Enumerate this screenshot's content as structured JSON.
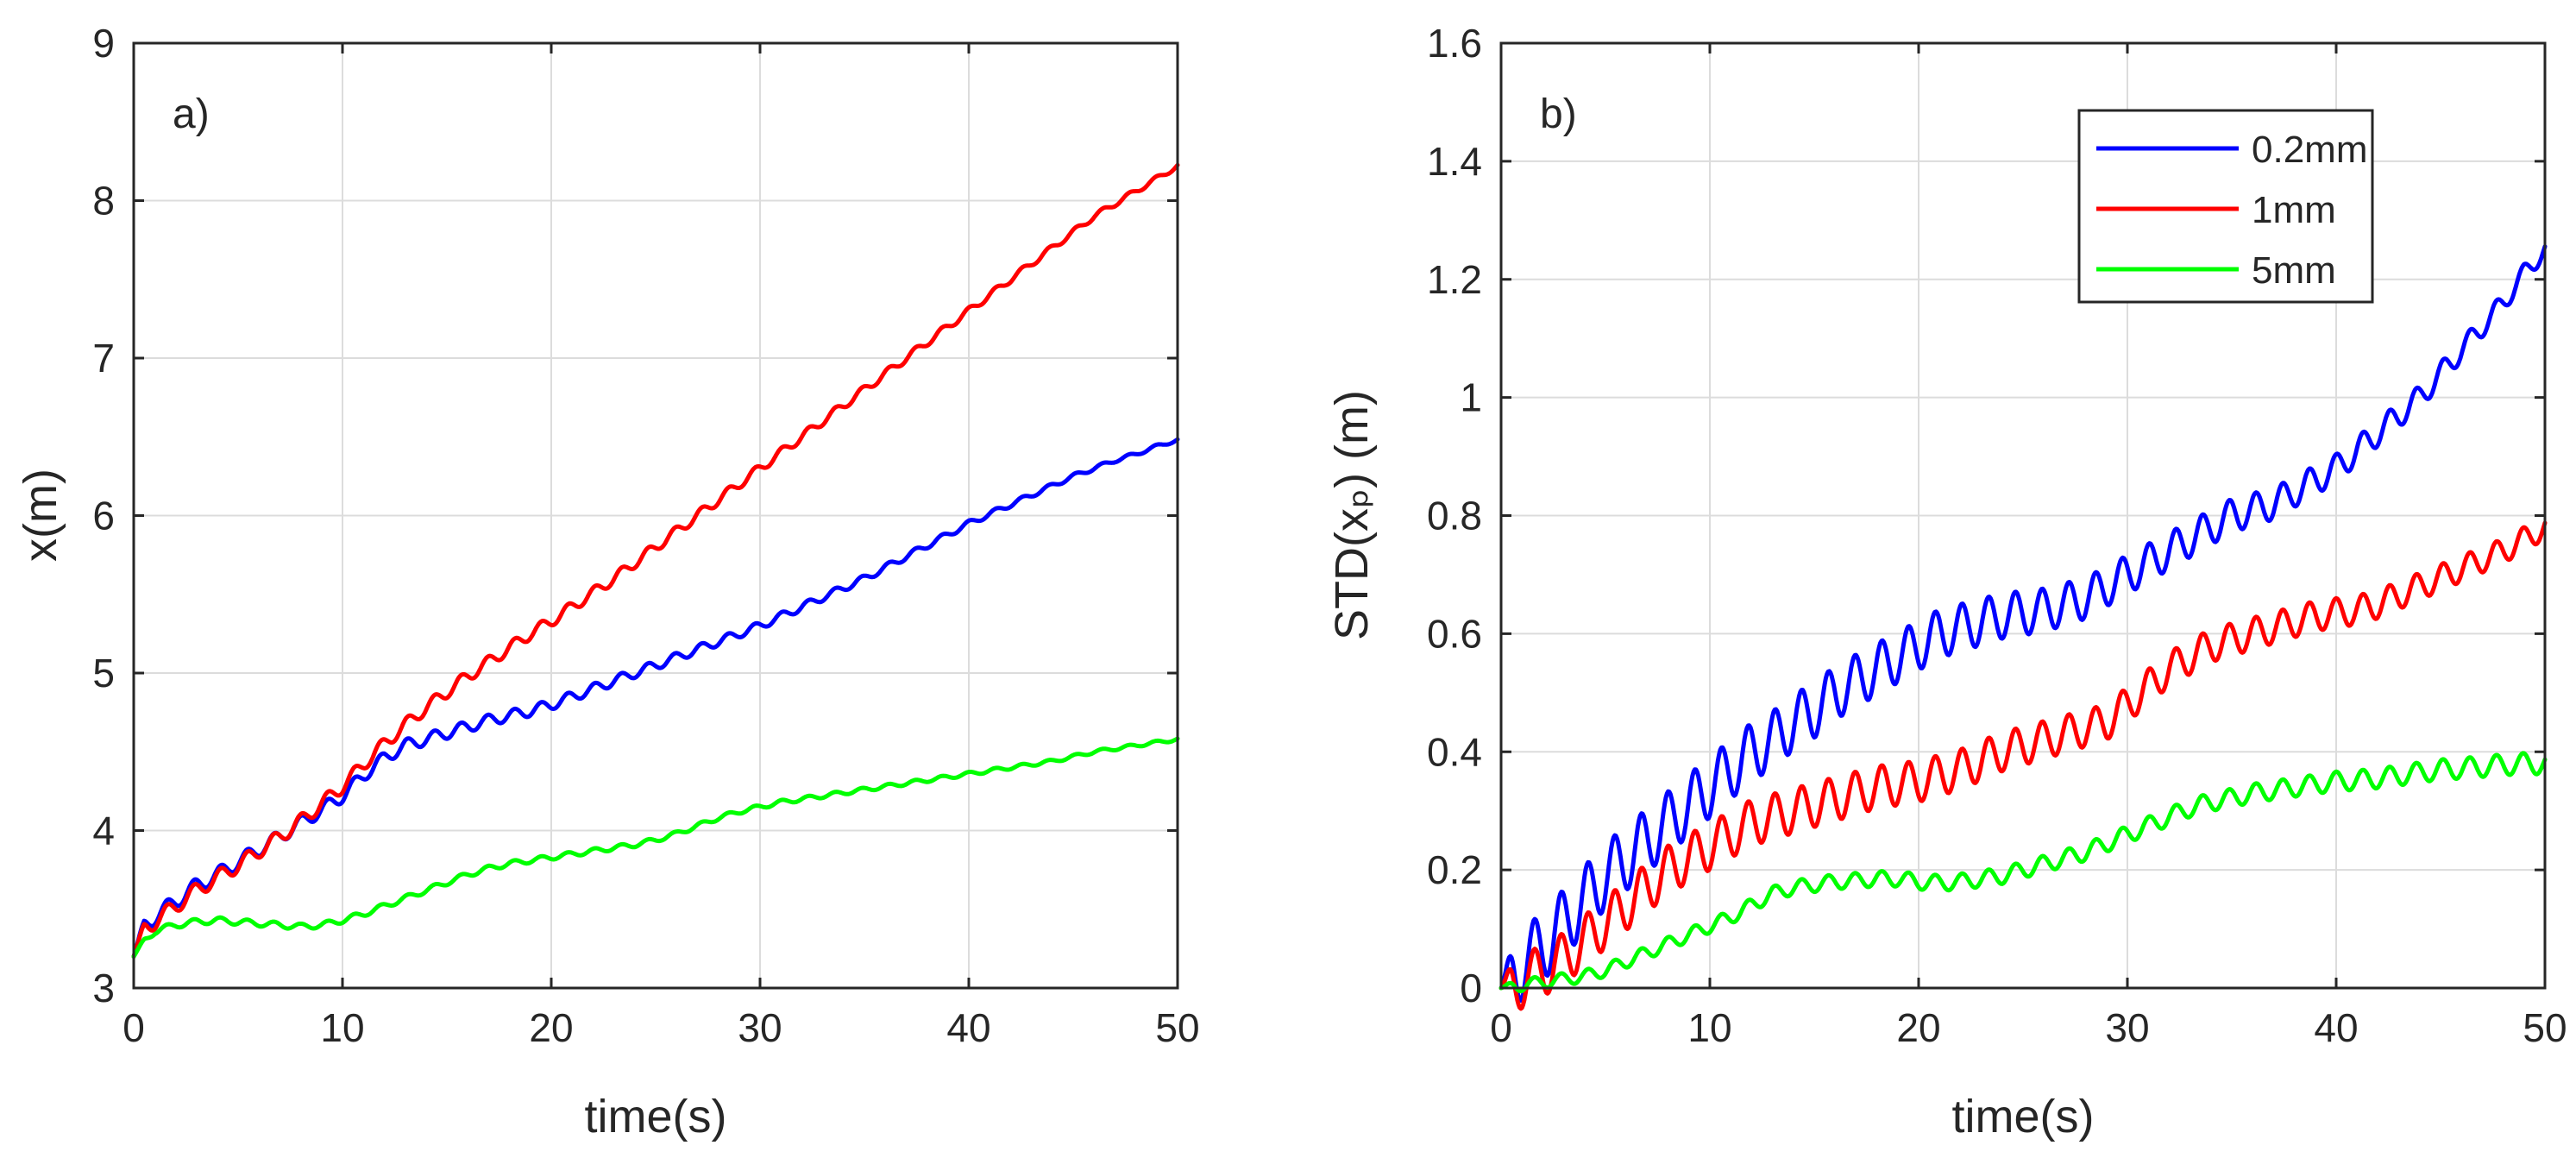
{
  "chart_data": [
    {
      "type": "line",
      "panel_label": "a)",
      "title": "",
      "xlabel": "time(s)",
      "ylabel": "x(m)",
      "xlim": [
        0,
        50
      ],
      "ylim": [
        3,
        9
      ],
      "xticks": [
        0,
        10,
        20,
        30,
        40,
        50
      ],
      "yticks": [
        3,
        4,
        5,
        6,
        7,
        8,
        9
      ],
      "xtick_labels": [
        "0",
        "10",
        "20",
        "30",
        "40",
        "50"
      ],
      "ytick_labels": [
        "3",
        "4",
        "5",
        "6",
        "7",
        "8",
        "9"
      ],
      "grid": true,
      "legend": null,
      "series": [
        {
          "name": "0.2mm",
          "color": "#0000ff",
          "x": [
            0,
            0.5,
            1,
            2,
            3,
            4,
            5,
            6,
            7,
            8,
            9,
            10,
            11,
            12,
            13,
            14,
            15,
            16,
            17,
            18,
            19,
            20,
            21,
            22,
            23,
            24,
            25,
            26,
            27,
            28,
            29,
            30,
            31,
            32,
            33,
            34,
            35,
            36,
            37,
            38,
            39,
            40,
            41,
            42,
            43,
            44,
            45,
            46,
            47,
            48,
            49,
            50
          ],
          "y": [
            3.2,
            3.4,
            3.45,
            3.55,
            3.65,
            3.72,
            3.8,
            3.88,
            3.96,
            4.05,
            4.13,
            4.22,
            4.35,
            4.46,
            4.54,
            4.58,
            4.62,
            4.66,
            4.7,
            4.73,
            4.76,
            4.8,
            4.85,
            4.9,
            4.95,
            5.0,
            5.05,
            5.1,
            5.15,
            5.2,
            5.25,
            5.3,
            5.36,
            5.42,
            5.48,
            5.54,
            5.6,
            5.67,
            5.74,
            5.81,
            5.88,
            5.95,
            6.01,
            6.07,
            6.13,
            6.19,
            6.25,
            6.3,
            6.35,
            6.39,
            6.44,
            6.48
          ],
          "oscillation_amplitude": [
            0.05,
            0.01
          ]
        },
        {
          "name": "1mm",
          "color": "#ff0000",
          "x": [
            0,
            0.5,
            1,
            2,
            3,
            4,
            5,
            6,
            7,
            8,
            9,
            10,
            11,
            12,
            13,
            14,
            15,
            16,
            17,
            18,
            19,
            20,
            21,
            22,
            23,
            24,
            25,
            26,
            27,
            28,
            29,
            30,
            31,
            32,
            33,
            34,
            35,
            36,
            37,
            38,
            39,
            40,
            41,
            42,
            43,
            44,
            45,
            46,
            47,
            48,
            49,
            50
          ],
          "y": [
            3.2,
            3.38,
            3.42,
            3.52,
            3.62,
            3.7,
            3.78,
            3.87,
            3.96,
            4.06,
            4.17,
            4.28,
            4.42,
            4.55,
            4.67,
            4.78,
            4.88,
            4.98,
            5.07,
            5.16,
            5.25,
            5.33,
            5.42,
            5.51,
            5.6,
            5.7,
            5.8,
            5.9,
            6.0,
            6.1,
            6.2,
            6.3,
            6.4,
            6.5,
            6.6,
            6.7,
            6.8,
            6.9,
            7.0,
            7.1,
            7.2,
            7.3,
            7.4,
            7.5,
            7.6,
            7.7,
            7.8,
            7.9,
            7.98,
            8.06,
            8.14,
            8.22
          ],
          "oscillation_amplitude": [
            0.05,
            0.015
          ]
        },
        {
          "name": "5mm",
          "color": "#00ff00",
          "x": [
            0,
            0.5,
            1,
            2,
            3,
            4,
            5,
            6,
            7,
            8,
            9,
            10,
            11,
            12,
            13,
            14,
            15,
            16,
            17,
            18,
            19,
            20,
            21,
            22,
            23,
            24,
            25,
            26,
            27,
            28,
            29,
            30,
            31,
            32,
            33,
            34,
            35,
            36,
            37,
            38,
            39,
            40,
            41,
            42,
            43,
            44,
            45,
            46,
            47,
            48,
            49,
            50
          ],
          "y": [
            3.2,
            3.3,
            3.36,
            3.4,
            3.42,
            3.43,
            3.42,
            3.41,
            3.4,
            3.39,
            3.4,
            3.43,
            3.47,
            3.52,
            3.57,
            3.62,
            3.67,
            3.72,
            3.76,
            3.79,
            3.81,
            3.83,
            3.85,
            3.87,
            3.89,
            3.91,
            3.94,
            3.98,
            4.03,
            4.08,
            4.12,
            4.15,
            4.18,
            4.2,
            4.22,
            4.24,
            4.26,
            4.28,
            4.3,
            4.32,
            4.34,
            4.36,
            4.38,
            4.4,
            4.42,
            4.44,
            4.47,
            4.5,
            4.52,
            4.54,
            4.56,
            4.58
          ],
          "oscillation_amplitude": [
            0.02,
            0.01
          ]
        }
      ]
    },
    {
      "type": "line",
      "panel_label": "b)",
      "title": "",
      "xlabel": "time(s)",
      "ylabel": "STD(xₚ) (m)",
      "xlim": [
        0,
        50
      ],
      "ylim": [
        0,
        1.6
      ],
      "xticks": [
        0,
        10,
        20,
        30,
        40,
        50
      ],
      "yticks": [
        0,
        0.2,
        0.4,
        0.6,
        0.8,
        1,
        1.2,
        1.4,
        1.6
      ],
      "xtick_labels": [
        "0",
        "10",
        "20",
        "30",
        "40",
        "50"
      ],
      "ytick_labels": [
        "0",
        "0.2",
        "0.4",
        "0.6",
        "0.8",
        "1",
        "1.2",
        "1.4",
        "1.6"
      ],
      "grid": true,
      "legend": {
        "placement": "top-right",
        "entries": [
          "0.2mm",
          "1mm",
          "5mm"
        ]
      },
      "series": [
        {
          "name": "0.2mm",
          "color": "#0000ff",
          "x": [
            0,
            1,
            2,
            3,
            4,
            5,
            6,
            7,
            8,
            9,
            10,
            11,
            12,
            13,
            14,
            15,
            16,
            17,
            18,
            19,
            20,
            21,
            22,
            23,
            24,
            25,
            26,
            27,
            28,
            29,
            30,
            31,
            32,
            33,
            34,
            35,
            36,
            37,
            38,
            39,
            40,
            41,
            42,
            43,
            44,
            45,
            46,
            47,
            48,
            49,
            50
          ],
          "y": [
            0,
            0.04,
            0.07,
            0.11,
            0.15,
            0.19,
            0.22,
            0.25,
            0.28,
            0.31,
            0.34,
            0.37,
            0.4,
            0.42,
            0.45,
            0.47,
            0.5,
            0.52,
            0.54,
            0.56,
            0.58,
            0.6,
            0.61,
            0.62,
            0.63,
            0.635,
            0.64,
            0.65,
            0.66,
            0.68,
            0.7,
            0.72,
            0.74,
            0.76,
            0.78,
            0.8,
            0.81,
            0.82,
            0.84,
            0.86,
            0.88,
            0.91,
            0.94,
            0.97,
            1.0,
            1.04,
            1.08,
            1.12,
            1.16,
            1.21,
            1.25
          ],
          "oscillation_amplitude": [
            0.06,
            0.015
          ]
        },
        {
          "name": "1mm",
          "color": "#ff0000",
          "x": [
            0,
            1,
            2,
            3,
            4,
            5,
            6,
            7,
            8,
            9,
            10,
            11,
            12,
            13,
            14,
            15,
            16,
            17,
            18,
            19,
            20,
            21,
            22,
            23,
            24,
            25,
            26,
            27,
            28,
            29,
            30,
            31,
            32,
            33,
            34,
            35,
            36,
            37,
            38,
            39,
            40,
            41,
            42,
            43,
            44,
            45,
            46,
            47,
            48,
            49,
            50
          ],
          "y": [
            0,
            0.01,
            0.03,
            0.05,
            0.08,
            0.11,
            0.14,
            0.17,
            0.2,
            0.22,
            0.24,
            0.26,
            0.28,
            0.29,
            0.3,
            0.31,
            0.32,
            0.33,
            0.34,
            0.345,
            0.35,
            0.36,
            0.37,
            0.385,
            0.4,
            0.41,
            0.42,
            0.43,
            0.44,
            0.45,
            0.48,
            0.51,
            0.54,
            0.56,
            0.58,
            0.59,
            0.6,
            0.61,
            0.62,
            0.63,
            0.635,
            0.64,
            0.65,
            0.665,
            0.68,
            0.695,
            0.71,
            0.725,
            0.74,
            0.76,
            0.78
          ],
          "oscillation_amplitude": [
            0.045,
            0.02
          ]
        },
        {
          "name": "5mm",
          "color": "#00ff00",
          "x": [
            0,
            1,
            2,
            3,
            4,
            5,
            6,
            7,
            8,
            9,
            10,
            11,
            12,
            13,
            14,
            15,
            16,
            17,
            18,
            19,
            20,
            21,
            22,
            23,
            24,
            25,
            26,
            27,
            28,
            29,
            30,
            31,
            32,
            33,
            34,
            35,
            36,
            37,
            38,
            39,
            40,
            41,
            42,
            43,
            44,
            45,
            46,
            47,
            48,
            49,
            50
          ],
          "y": [
            0,
            0.005,
            0.01,
            0.015,
            0.02,
            0.03,
            0.045,
            0.06,
            0.075,
            0.09,
            0.105,
            0.12,
            0.14,
            0.16,
            0.17,
            0.175,
            0.18,
            0.182,
            0.185,
            0.185,
            0.18,
            0.178,
            0.18,
            0.185,
            0.19,
            0.2,
            0.21,
            0.22,
            0.23,
            0.245,
            0.26,
            0.275,
            0.29,
            0.305,
            0.315,
            0.322,
            0.33,
            0.335,
            0.34,
            0.345,
            0.35,
            0.352,
            0.355,
            0.36,
            0.365,
            0.37,
            0.372,
            0.375,
            0.378,
            0.38,
            0.38
          ],
          "oscillation_amplitude": [
            0.01,
            0.018
          ]
        }
      ]
    }
  ]
}
